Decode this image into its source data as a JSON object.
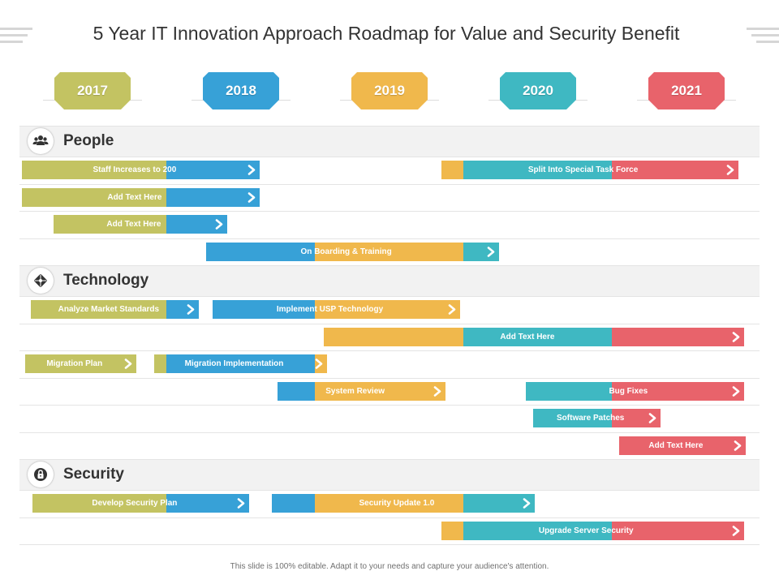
{
  "title": "5 Year IT Innovation Approach Roadmap for Value and Security Benefit",
  "footer": "This slide is 100% editable. Adapt it to your needs and capture your audience's attention.",
  "colors": {
    "green": "#c3c362",
    "blue": "#37a1d7",
    "orange": "#f0b84c",
    "teal": "#3fb8c2",
    "red": "#e8636b"
  },
  "years": [
    {
      "label": "2017",
      "color": "#c3c362"
    },
    {
      "label": "2018",
      "color": "#37a1d7"
    },
    {
      "label": "2019",
      "color": "#f0b84c"
    },
    {
      "label": "2020",
      "color": "#3fb8c2"
    },
    {
      "label": "2021",
      "color": "#e8636b"
    }
  ],
  "categories": [
    {
      "name": "People",
      "icon": "people-icon",
      "rows": [
        {
          "bars": [
            {
              "label": "Staff Increases  to 200",
              "start": 0.03,
              "end": 1.63,
              "colors": [
                "green",
                "blue"
              ]
            },
            {
              "label": "Split Into Special Task Force",
              "start": 2.85,
              "end": 4.85,
              "colors": [
                "orange",
                "teal",
                "red"
              ]
            }
          ]
        },
        {
          "bars": [
            {
              "label": "Add Text Here",
              "start": 0.03,
              "end": 1.63,
              "colors": [
                "green",
                "blue"
              ]
            }
          ]
        },
        {
          "bars": [
            {
              "label": "Add Text Here",
              "start": 0.24,
              "end": 1.41,
              "colors": [
                "green",
                "blue"
              ]
            }
          ]
        },
        {
          "bars": [
            {
              "label": "On Boarding & Training",
              "start": 1.27,
              "end": 3.24,
              "colors": [
                "blue",
                "orange",
                "teal"
              ]
            }
          ]
        }
      ]
    },
    {
      "name": "Technology",
      "icon": "technology-icon",
      "rows": [
        {
          "bars": [
            {
              "label": "Analyze Market Standards",
              "start": 0.09,
              "end": 1.22,
              "colors": [
                "green",
                "blue"
              ]
            },
            {
              "label": "Implement USP Technology",
              "start": 1.31,
              "end": 2.98,
              "colors": [
                "blue",
                "orange"
              ]
            }
          ]
        },
        {
          "bars": [
            {
              "label": "Add Text Here",
              "start": 2.06,
              "end": 4.89,
              "colors": [
                "orange",
                "teal",
                "red"
              ]
            }
          ]
        },
        {
          "bars": [
            {
              "label": "Migration Plan",
              "start": 0.05,
              "end": 0.8,
              "colors": [
                "green"
              ]
            },
            {
              "label": "Migration Implementation",
              "start": 0.92,
              "end": 2.08,
              "colors": [
                "green",
                "blue",
                "orange"
              ]
            }
          ]
        },
        {
          "bars": [
            {
              "label": "System Review",
              "start": 1.75,
              "end": 2.88,
              "colors": [
                "blue",
                "orange"
              ]
            },
            {
              "label": "Bug Fixes",
              "start": 3.42,
              "end": 4.89,
              "colors": [
                "teal",
                "red"
              ]
            }
          ]
        },
        {
          "bars": [
            {
              "label": "Software Patches",
              "start": 3.47,
              "end": 4.33,
              "colors": [
                "teal",
                "red"
              ]
            }
          ]
        },
        {
          "bars": [
            {
              "label": "Add Text Here",
              "start": 4.05,
              "end": 4.9,
              "colors": [
                "red"
              ]
            }
          ]
        }
      ]
    },
    {
      "name": "Security",
      "icon": "lock-icon",
      "rows": [
        {
          "bars": [
            {
              "label": "Develop Security Plan",
              "start": 0.1,
              "end": 1.56,
              "colors": [
                "green",
                "blue"
              ]
            },
            {
              "label": "Security Update  1.0",
              "start": 1.71,
              "end": 3.48,
              "colors": [
                "blue",
                "orange",
                "teal"
              ]
            }
          ]
        },
        {
          "bars": [
            {
              "label": "Upgrade Server Security",
              "start": 2.85,
              "end": 4.89,
              "colors": [
                "orange",
                "teal",
                "red"
              ]
            }
          ]
        }
      ]
    }
  ]
}
